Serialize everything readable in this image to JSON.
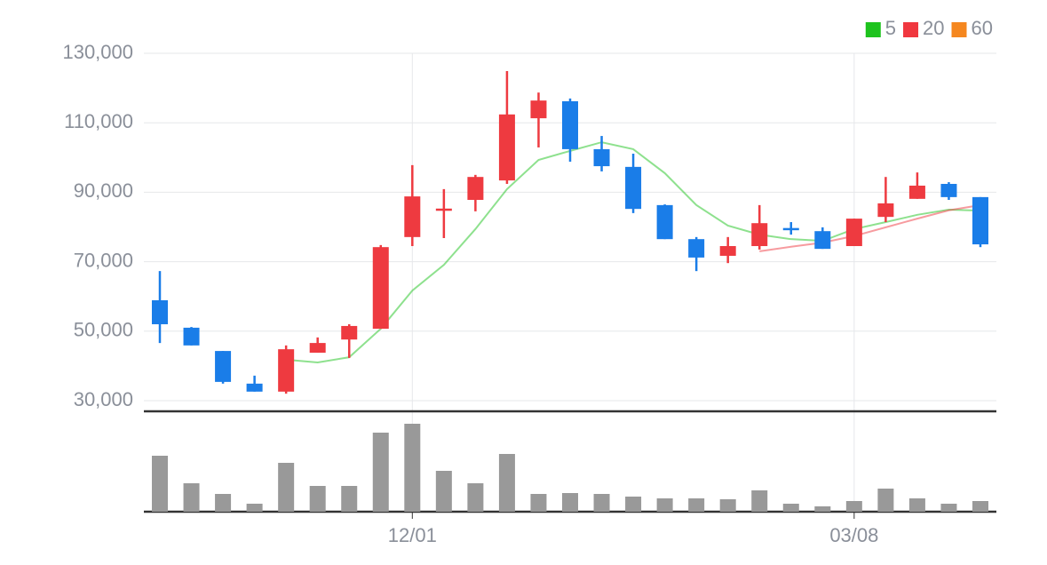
{
  "chart_data": {
    "type": "candlestick",
    "categories": [
      null,
      null,
      null,
      null,
      null,
      null,
      null,
      null,
      "12/01",
      null,
      null,
      null,
      null,
      null,
      null,
      null,
      null,
      null,
      null,
      null,
      null,
      null,
      "03/08",
      null,
      null,
      null,
      null
    ],
    "open": [
      58900,
      51000,
      44300,
      34900,
      32600,
      43800,
      47600,
      50700,
      77100,
      85200,
      87800,
      93400,
      111300,
      116200,
      102400,
      97300,
      86300,
      76500,
      71700,
      74500,
      79700,
      78800,
      74500,
      82900,
      88100,
      92400,
      88600
    ],
    "high": [
      67300,
      51200,
      44300,
      37200,
      45900,
      48200,
      52000,
      74800,
      97800,
      90900,
      95000,
      124900,
      118700,
      117000,
      106200,
      101100,
      86500,
      77100,
      77100,
      86300,
      81400,
      79900,
      82400,
      94400,
      95700,
      92900,
      88600
    ],
    "low": [
      46600,
      45900,
      34900,
      32600,
      32000,
      43800,
      42300,
      50700,
      74500,
      76800,
      84500,
      92400,
      102900,
      98800,
      96000,
      84000,
      76500,
      67300,
      69600,
      73500,
      77800,
      73700,
      74500,
      81400,
      88100,
      87800,
      74200
    ],
    "close": [
      52000,
      45900,
      35400,
      32600,
      44800,
      46600,
      51500,
      74200,
      88800,
      85300,
      94400,
      112400,
      116400,
      102400,
      97500,
      85200,
      76500,
      71200,
      74500,
      81100,
      79600,
      73700,
      82400,
      86800,
      91900,
      88600,
      75000
    ],
    "volume": [
      63,
      32,
      20,
      9,
      55,
      29,
      29,
      89,
      99,
      46,
      32,
      65,
      20,
      21,
      20,
      17,
      15,
      15,
      14,
      24,
      9,
      6,
      12,
      26,
      15,
      9,
      12
    ],
    "volume_lim": [
      0,
      113
    ],
    "up_color": "#ee3a40",
    "down_color": "#1a7de8",
    "volume_color": "#999999",
    "moving_averages": [
      {
        "name": "5",
        "color": "#1ec31e",
        "values": [
          null,
          null,
          null,
          null,
          41800,
          41000,
          42500,
          50700,
          61700,
          69100,
          79400,
          90900,
          99300,
          101900,
          104400,
          102400,
          95500,
          86300,
          80400,
          77800,
          76500,
          76000,
          79400,
          81400,
          83500,
          85000,
          84700
        ]
      },
      {
        "name": "20",
        "color": "#f0373f",
        "values": [
          null,
          null,
          null,
          null,
          null,
          null,
          null,
          null,
          null,
          null,
          null,
          null,
          null,
          null,
          null,
          null,
          null,
          null,
          null,
          73000,
          74300,
          75500,
          77400,
          79900,
          82400,
          84800,
          86300
        ]
      },
      {
        "name": "60",
        "color": "#f5871f",
        "values": [
          null,
          null,
          null,
          null,
          null,
          null,
          null,
          null,
          null,
          null,
          null,
          null,
          null,
          null,
          null,
          null,
          null,
          null,
          null,
          null,
          null,
          null,
          null,
          null,
          null,
          null,
          null
        ]
      }
    ],
    "ylim": [
      30000,
      130000
    ],
    "yticks": [
      {
        "value": 30000,
        "label": "30,000"
      },
      {
        "value": 50000,
        "label": "50,000"
      },
      {
        "value": 70000,
        "label": "70,000"
      },
      {
        "value": 90000,
        "label": "90,000"
      },
      {
        "value": 110000,
        "label": "110,000"
      },
      {
        "value": 130000,
        "label": "130,000"
      }
    ],
    "grid": true
  }
}
